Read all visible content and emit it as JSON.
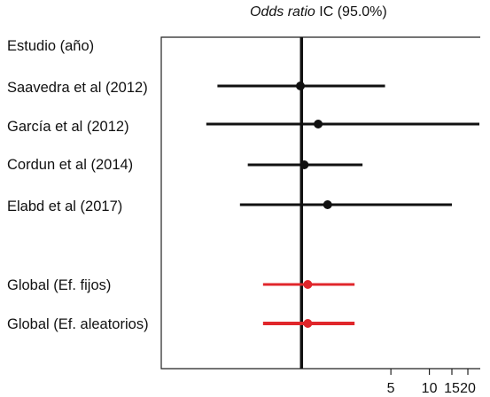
{
  "chart_data": {
    "type": "forest",
    "axis_title_italic": "Odds ratio",
    "axis_title_rest": "IC (95.0%)",
    "column_header": "Estudio (año)",
    "x_scale": "log",
    "reference_line": 1,
    "xlim": [
      0.08,
      25
    ],
    "x_ticks": [
      {
        "value": 5,
        "label": "5"
      },
      {
        "value": 10,
        "label": "10"
      },
      {
        "value": 15,
        "label": "15"
      },
      {
        "value": 20,
        "label": "20"
      }
    ],
    "studies": [
      {
        "label": "Saavedra et al (2012)",
        "or": 0.98,
        "lo": 0.22,
        "hi": 4.5,
        "color": "#111111"
      },
      {
        "label": "García et al (2012)",
        "or": 1.35,
        "lo": 0.18,
        "hi": 25,
        "color": "#111111",
        "hi_truncated": true
      },
      {
        "label": "Cordun et al (2014)",
        "or": 1.05,
        "lo": 0.38,
        "hi": 3.0,
        "color": "#111111"
      },
      {
        "label": "Elabd et al (2017)",
        "or": 1.6,
        "lo": 0.33,
        "hi": 15,
        "color": "#111111"
      }
    ],
    "pooled": [
      {
        "label": "Global (Ef. fijos)",
        "or": 1.12,
        "lo": 0.5,
        "hi": 2.6,
        "color": "#e0262b"
      },
      {
        "label": "Global (Ef. aleatorios)",
        "or": 1.12,
        "lo": 0.5,
        "hi": 2.6,
        "color": "#e0262b"
      }
    ]
  }
}
